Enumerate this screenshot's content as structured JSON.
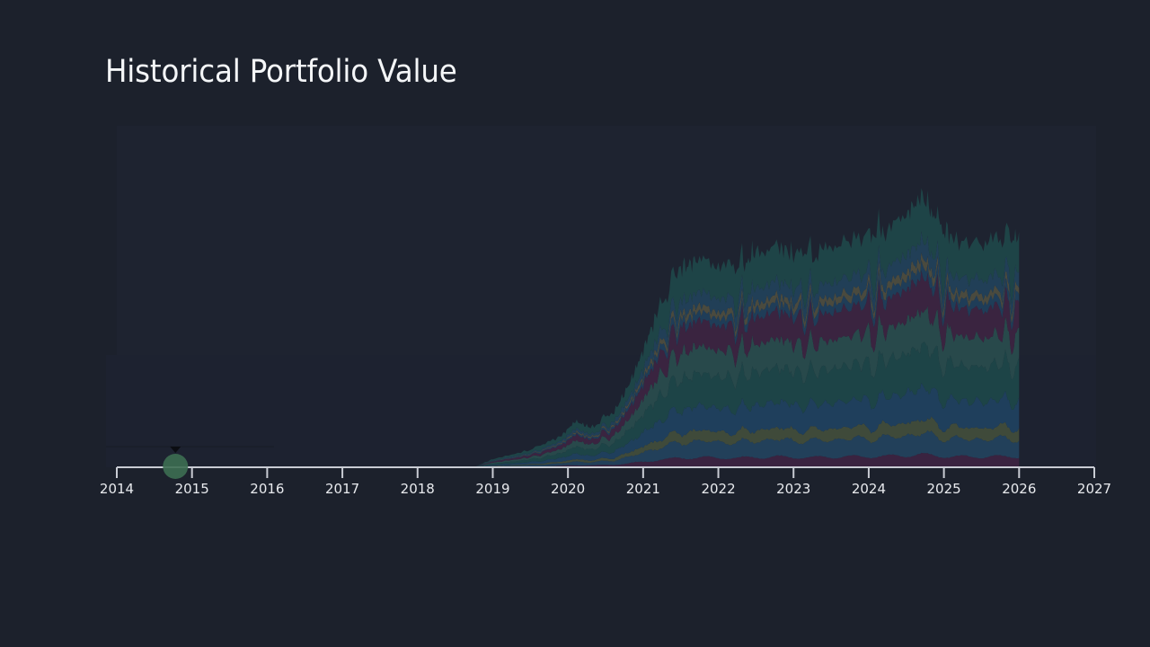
{
  "header": {
    "title": "Historical Portfolio Value"
  },
  "colors": {
    "background": "#1c212c",
    "axis": "#c9ccd4",
    "marker": "#3d6e52",
    "bands": [
      "#3a2340",
      "#22405a",
      "#3f4a3a",
      "#1f3f5c",
      "#1d4447",
      "#28494b",
      "#3a2440",
      "#1f3d58",
      "#4a4a3e",
      "#213f57",
      "#1e4447"
    ]
  },
  "marker": {
    "year": 14.78,
    "label": "current-position"
  },
  "chart_data": {
    "type": "area",
    "stacked": true,
    "title": "Historical Portfolio Value",
    "xlabel": "",
    "ylabel": "",
    "xlim": [
      2014,
      2027
    ],
    "x_ticks": [
      "2014",
      "2015",
      "2016",
      "2017",
      "2018",
      "2019",
      "2020",
      "2021",
      "2022",
      "2023",
      "2024",
      "2025",
      "2026",
      "2027"
    ],
    "grid": false,
    "legend": null,
    "x": [
      2018.75,
      2019.0,
      2019.5,
      2019.9,
      2020.1,
      2020.3,
      2020.6,
      2020.8,
      2021.0,
      2021.2,
      2021.5,
      2021.7,
      2022.0,
      2022.3,
      2022.5,
      2022.8,
      2023.0,
      2023.3,
      2023.6,
      2024.0,
      2024.2,
      2024.5,
      2024.7,
      2024.9,
      2025.1,
      2025.5,
      2025.8,
      2026.0
    ],
    "total": [
      0,
      9,
      19,
      34,
      51,
      44,
      59,
      89,
      129,
      174,
      219,
      229,
      224,
      219,
      239,
      244,
      234,
      234,
      249,
      254,
      259,
      279,
      301,
      271,
      249,
      249,
      251,
      254
    ],
    "band_fractions": [
      0.047,
      0.079,
      0.051,
      0.118,
      0.157,
      0.13,
      0.126,
      0.039,
      0.031,
      0.067,
      0.155
    ]
  }
}
